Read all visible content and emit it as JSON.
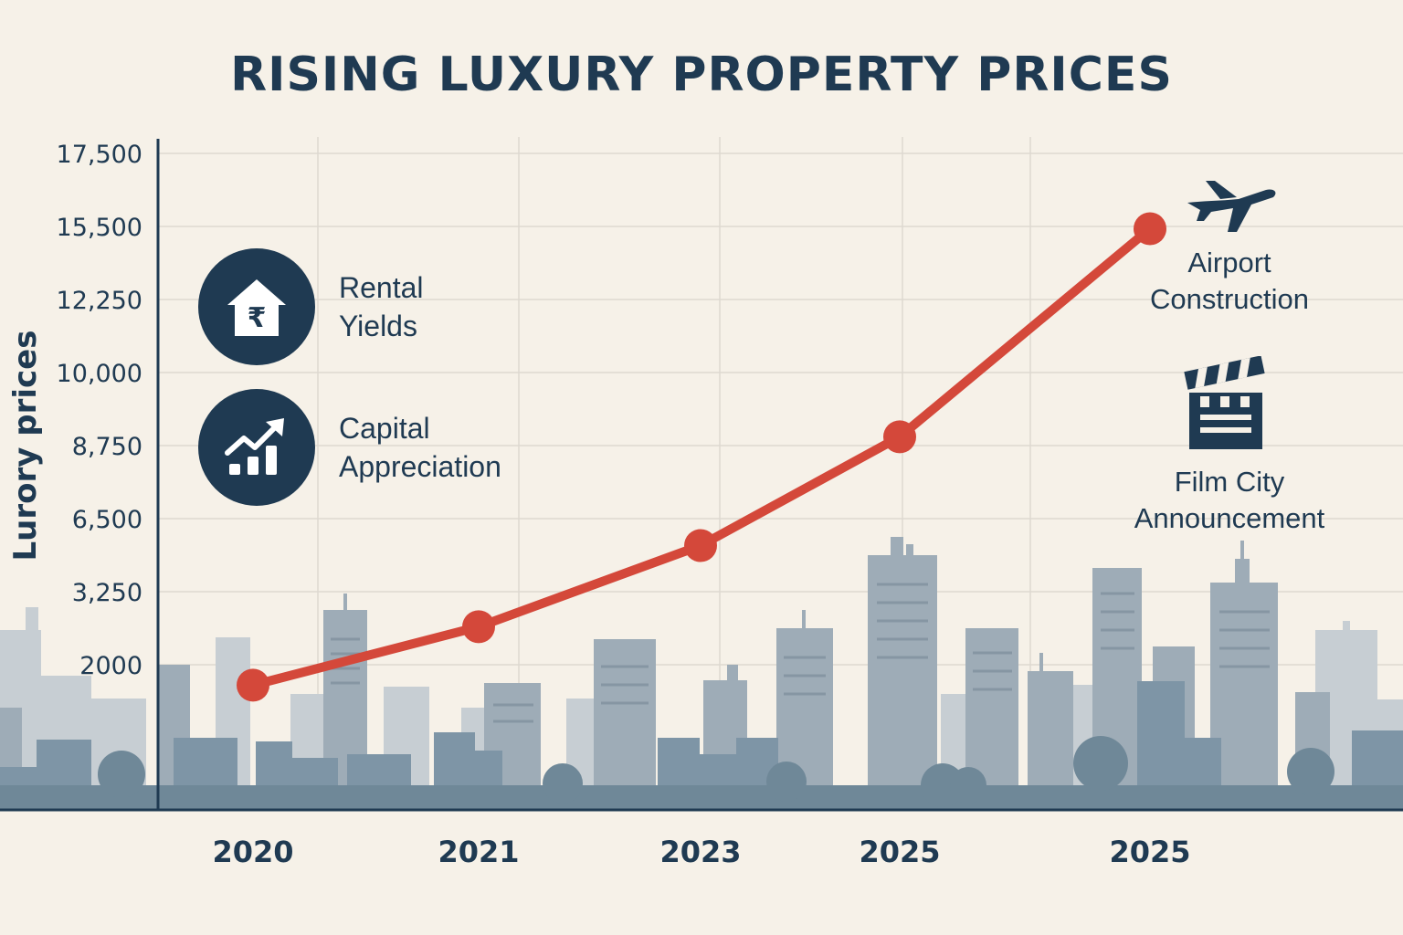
{
  "chart_data": {
    "type": "line",
    "title": "RISING LUXURY PROPERTY PRICES",
    "ylabel": "Lurory prices",
    "xlabel": "",
    "categories": [
      "2020",
      "2021",
      "2023",
      "2025",
      "2025"
    ],
    "y_ticks": [
      "17,500",
      "15,500",
      "12,250",
      "10,000",
      "8,750",
      "6,500",
      "3,250",
      "2000"
    ],
    "series": [
      {
        "name": "Luxury property prices",
        "values": [
          1650,
          2650,
          5300,
          8900,
          15400
        ]
      }
    ],
    "grid": true,
    "colors": {
      "line": "#d4483a",
      "text": "#1f3a52",
      "background": "#f6f1e8"
    }
  },
  "legend": {
    "items": [
      {
        "icon": "rupee-house-icon",
        "line1": "Rental",
        "line2": "Yields"
      },
      {
        "icon": "growth-chart-icon",
        "line1": "Capital",
        "line2": "Appreciation"
      }
    ]
  },
  "annotations": {
    "airport": {
      "icon": "airplane-icon",
      "line1": "Airport",
      "line2": "Construction"
    },
    "film_city": {
      "icon": "clapperboard-icon",
      "line1": "Film City",
      "line2": "Announcement"
    }
  }
}
